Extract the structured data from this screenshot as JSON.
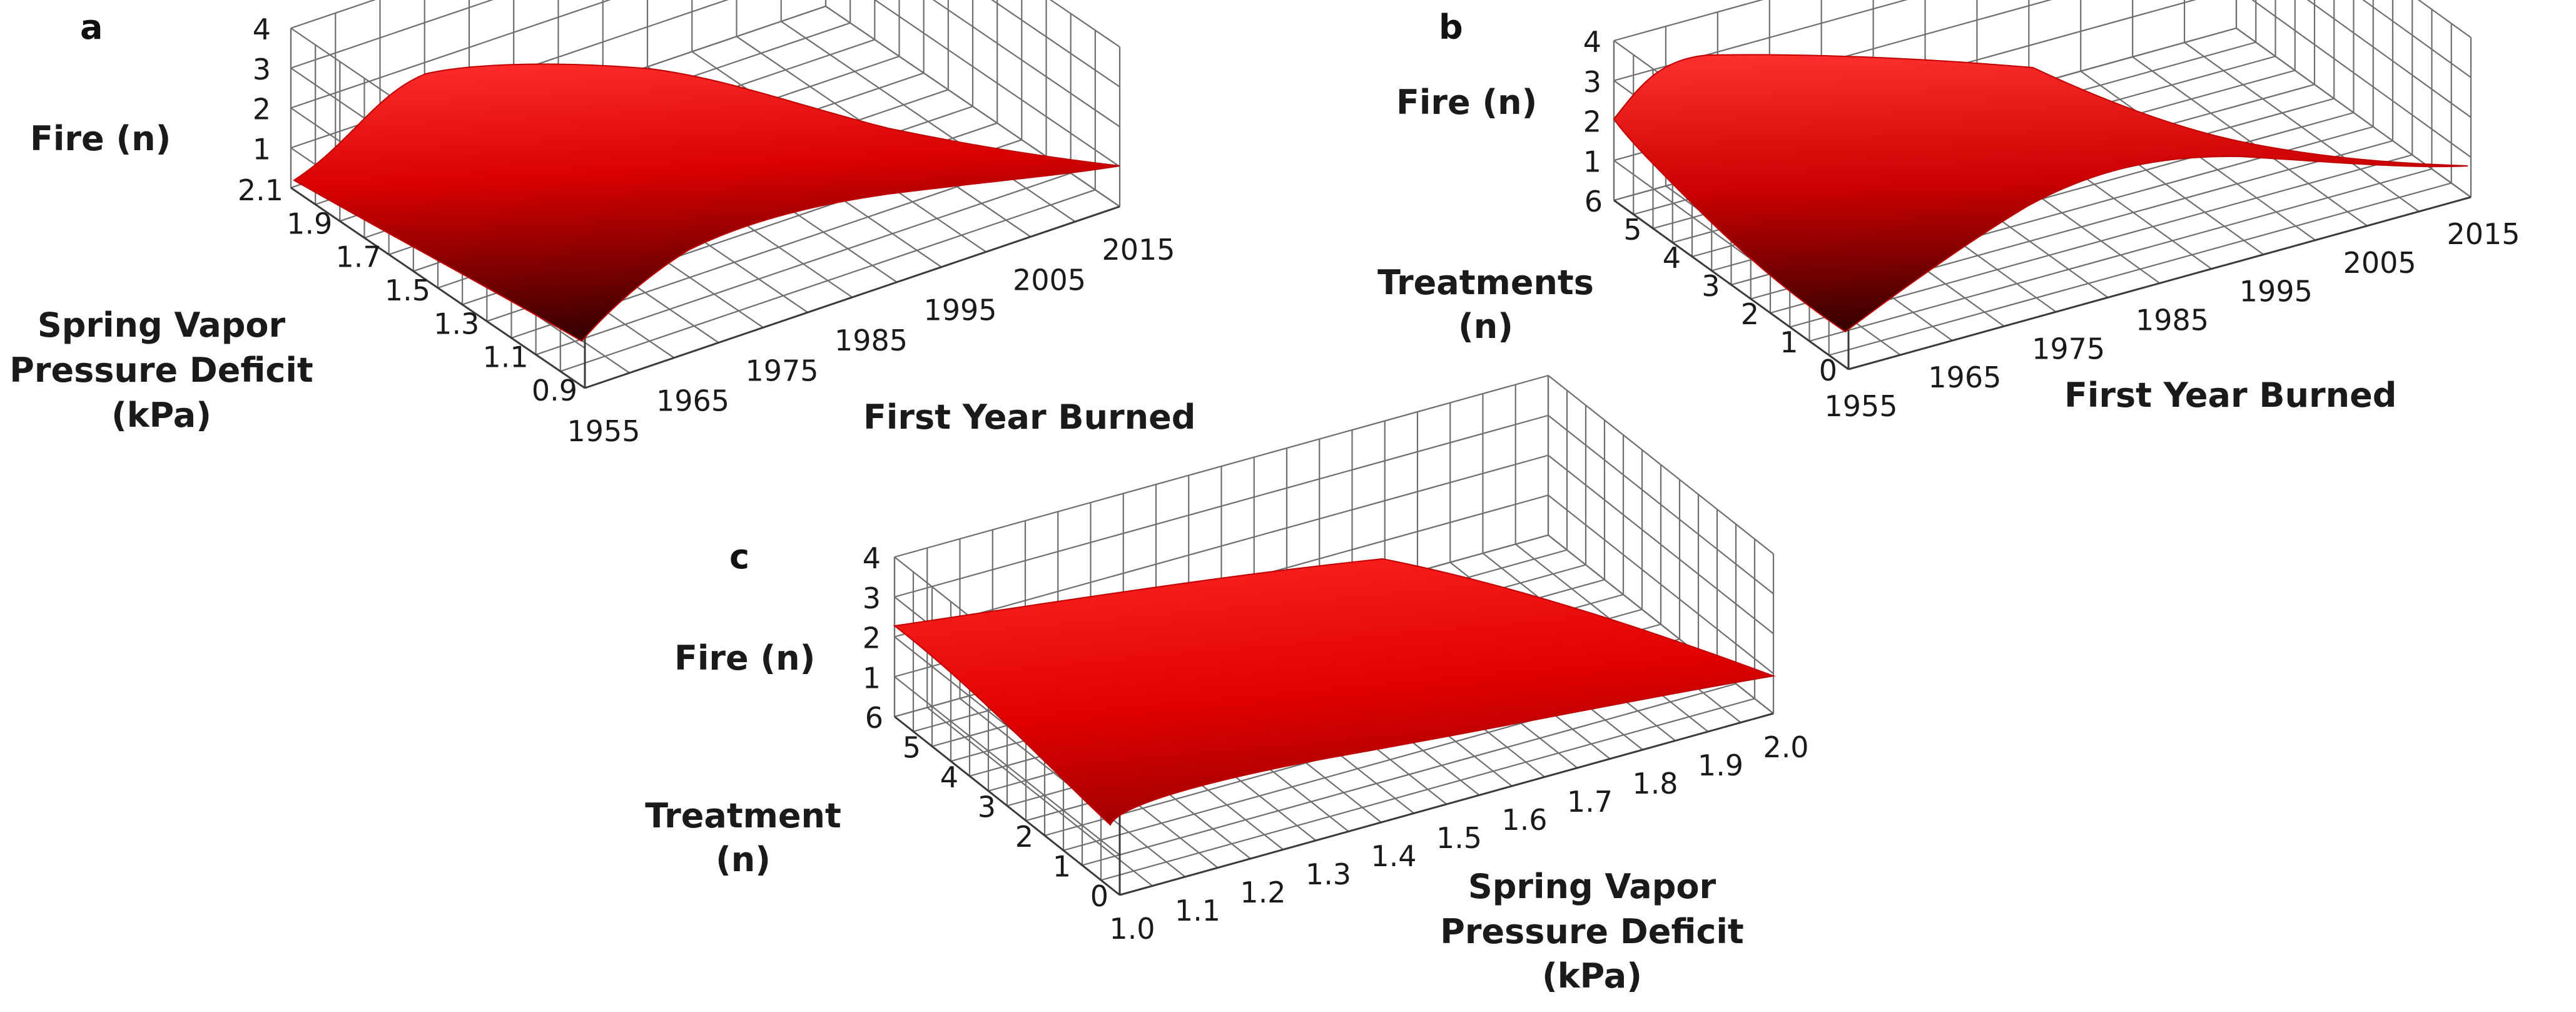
{
  "colors": {
    "surface_light": "#ff2a2a",
    "surface_mid": "#d40000",
    "surface_dark": "#3a0000",
    "grid": "#6e6e6e"
  },
  "chart_data": [
    {
      "panel": "a",
      "type": "surface",
      "zlabel": "Fire (n)",
      "xlabel": "First Year Burned",
      "ylabel_lines": [
        "Spring Vapor",
        "Pressure Deficit",
        "(kPa)"
      ],
      "z_ticks": [
        "1",
        "2",
        "3",
        "4"
      ],
      "x_ticks": [
        "1955",
        "1965",
        "1975",
        "1985",
        "1995",
        "2005",
        "2015"
      ],
      "y_ticks": [
        "0.9",
        "1.1",
        "1.3",
        "1.5",
        "1.7",
        "1.9",
        "2.1"
      ],
      "zlim": [
        0,
        4
      ],
      "xlim": [
        1955,
        2015
      ],
      "ylim": [
        0.9,
        2.1
      ]
    },
    {
      "panel": "b",
      "type": "surface",
      "zlabel": "Fire (n)",
      "xlabel": "First Year Burned",
      "ylabel_lines": [
        "Treatments",
        "(n)"
      ],
      "z_ticks": [
        "1",
        "2",
        "3",
        "4"
      ],
      "x_ticks": [
        "1955",
        "1965",
        "1975",
        "1985",
        "1995",
        "2005",
        "2015"
      ],
      "y_ticks": [
        "0",
        "1",
        "2",
        "3",
        "4",
        "5",
        "6"
      ],
      "zlim": [
        0,
        4
      ],
      "xlim": [
        1955,
        2015
      ],
      "ylim": [
        0,
        6
      ]
    },
    {
      "panel": "c",
      "type": "surface",
      "zlabel": "Fire (n)",
      "xlabel_lines": [
        "Spring Vapor",
        "Pressure Deficit",
        "(kPa)"
      ],
      "ylabel_lines": [
        "Treatment",
        "(n)"
      ],
      "z_ticks": [
        "1",
        "2",
        "3",
        "4"
      ],
      "x_ticks": [
        "1.0",
        "1.1",
        "1.2",
        "1.3",
        "1.4",
        "1.5",
        "1.6",
        "1.7",
        "1.8",
        "1.9",
        "2.0"
      ],
      "y_ticks": [
        "0",
        "1",
        "2",
        "3",
        "4",
        "5",
        "6"
      ],
      "zlim": [
        0,
        4
      ],
      "xlim": [
        1.0,
        2.0
      ],
      "ylim": [
        0,
        6
      ]
    }
  ]
}
